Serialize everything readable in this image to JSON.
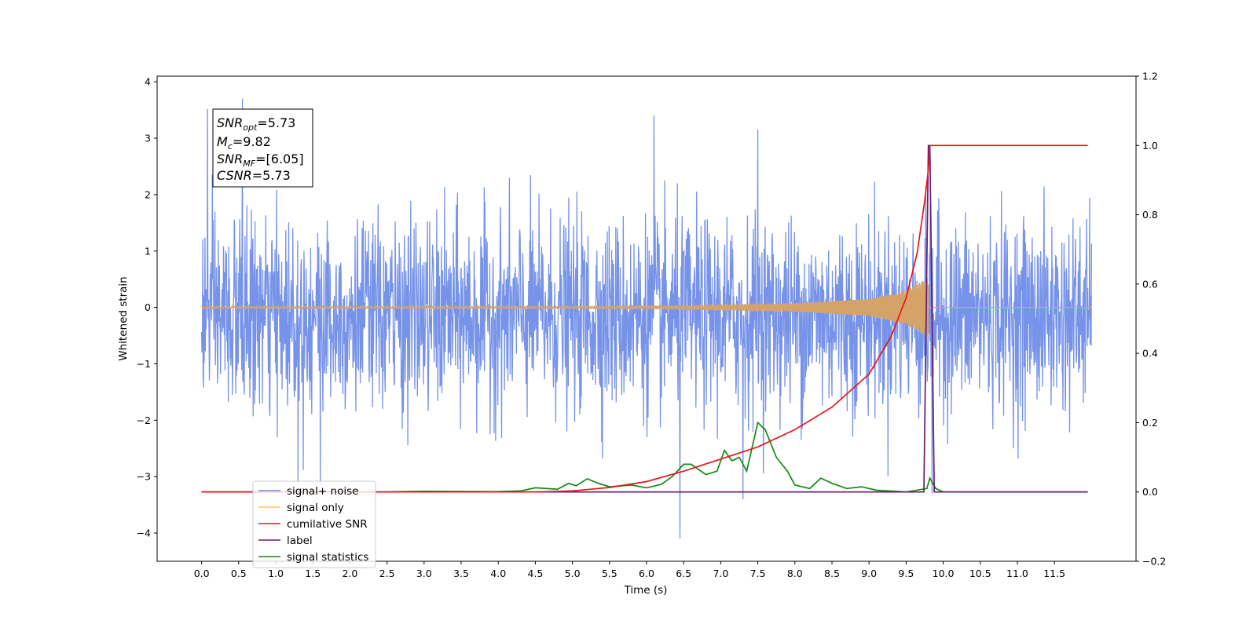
{
  "chart_data": {
    "type": "line",
    "xlabel": "Time (s)",
    "ylabel": "Whitened strain",
    "xlim": [
      -0.6,
      12.6
    ],
    "ylim_left": [
      -4.5,
      4.1
    ],
    "ylim_right": [
      -0.2,
      1.2
    ],
    "x_ticks": [
      "0.0",
      "0.5",
      "1.0",
      "1.5",
      "2.0",
      "2.5",
      "3.0",
      "3.5",
      "4.0",
      "4.5",
      "5.0",
      "5.5",
      "6.0",
      "6.5",
      "7.0",
      "7.5",
      "8.0",
      "8.5",
      "9.0",
      "9.5",
      "10.0",
      "10.5",
      "11.0",
      "11.5"
    ],
    "y_ticks_left": [
      "−4",
      "−3",
      "−2",
      "−1",
      "0",
      "1",
      "2",
      "3",
      "4"
    ],
    "y_ticks_right": [
      "−0.2",
      "0.0",
      "0.2",
      "0.4",
      "0.6",
      "0.8",
      "1.0",
      "1.2"
    ],
    "annotation": {
      "line1_label": "SNR",
      "line1_sub": "opt",
      "line1_value": "=5.73",
      "line2_label": "M",
      "line2_sub": "c",
      "line2_value": "=9.82",
      "line3_label": "SNR",
      "line3_sub": "MF",
      "line3_value": "=[6.05]",
      "line4_label": "CSNR",
      "line4_value": "=5.73"
    },
    "legend": {
      "location": "lower-left",
      "entries": [
        {
          "label": "signal+ noise",
          "color": "#6f8de8"
        },
        {
          "label": "signal only",
          "color": "#ffc266"
        },
        {
          "label": "cumilative SNR",
          "color": "#e8161b"
        },
        {
          "label": "label",
          "color": "#6a1b6e"
        },
        {
          "label": "signal statistics",
          "color": "#138a13"
        }
      ]
    },
    "series": [
      {
        "name": "signal+ noise",
        "axis": "left",
        "color": "#6f8de8",
        "t_start": 0.0,
        "t_end": 12.0,
        "samples": 2400,
        "typical_range": [
          -1.6,
          1.3
        ],
        "extremes": [
          {
            "x": 0.55,
            "y": 3.7
          },
          {
            "x": 0.08,
            "y": 3.52
          },
          {
            "x": 6.1,
            "y": 3.4
          },
          {
            "x": 7.5,
            "y": 3.15
          },
          {
            "x": 6.45,
            "y": -4.1
          },
          {
            "x": 1.3,
            "y": -3.1
          },
          {
            "x": 1.6,
            "y": -3.15
          },
          {
            "x": 9.85,
            "y": -3.3
          },
          {
            "x": 7.3,
            "y": -3.4
          }
        ]
      },
      {
        "name": "signal only",
        "axis": "left",
        "color": "#ffc266",
        "t_start": 0.0,
        "t_end": 12.0,
        "merger_time": 9.8,
        "envelope": [
          {
            "x": 0.0,
            "y": 0.02
          },
          {
            "x": 5.0,
            "y": 0.02
          },
          {
            "x": 6.5,
            "y": 0.03
          },
          {
            "x": 8.0,
            "y": 0.07
          },
          {
            "x": 9.0,
            "y": 0.15
          },
          {
            "x": 9.5,
            "y": 0.3
          },
          {
            "x": 9.8,
            "y": 0.55
          },
          {
            "x": 9.82,
            "y": 0.0
          },
          {
            "x": 12.0,
            "y": 0.0
          }
        ]
      },
      {
        "name": "cumilative SNR",
        "axis": "right",
        "color": "#e8161b",
        "points": [
          {
            "x": 0.0,
            "y": 0.0
          },
          {
            "x": 4.5,
            "y": 0.0
          },
          {
            "x": 5.0,
            "y": 0.003
          },
          {
            "x": 5.5,
            "y": 0.013
          },
          {
            "x": 6.0,
            "y": 0.03
          },
          {
            "x": 6.5,
            "y": 0.06
          },
          {
            "x": 7.0,
            "y": 0.095
          },
          {
            "x": 7.5,
            "y": 0.13
          },
          {
            "x": 8.0,
            "y": 0.18
          },
          {
            "x": 8.5,
            "y": 0.245
          },
          {
            "x": 9.0,
            "y": 0.34
          },
          {
            "x": 9.3,
            "y": 0.45
          },
          {
            "x": 9.5,
            "y": 0.56
          },
          {
            "x": 9.65,
            "y": 0.69
          },
          {
            "x": 9.75,
            "y": 0.84
          },
          {
            "x": 9.8,
            "y": 0.93
          },
          {
            "x": 9.82,
            "y": 1.0
          },
          {
            "x": 11.95,
            "y": 1.0
          }
        ]
      },
      {
        "name": "label",
        "axis": "right",
        "color": "#6a1b6e",
        "points": [
          {
            "x": 0.0,
            "y": 0.0
          },
          {
            "x": 9.74,
            "y": 0.0
          },
          {
            "x": 9.8,
            "y": 1.0
          },
          {
            "x": 9.82,
            "y": 1.0
          },
          {
            "x": 9.88,
            "y": 0.0
          },
          {
            "x": 11.95,
            "y": 0.0
          }
        ]
      },
      {
        "name": "signal statistics",
        "axis": "right",
        "color": "#138a13",
        "points": [
          {
            "x": 0.0,
            "y": 0.0
          },
          {
            "x": 2.5,
            "y": 0.0
          },
          {
            "x": 3.0,
            "y": 0.002
          },
          {
            "x": 4.0,
            "y": 0.001
          },
          {
            "x": 4.3,
            "y": 0.003
          },
          {
            "x": 4.5,
            "y": 0.012
          },
          {
            "x": 4.8,
            "y": 0.008
          },
          {
            "x": 4.95,
            "y": 0.025
          },
          {
            "x": 5.05,
            "y": 0.018
          },
          {
            "x": 5.2,
            "y": 0.038
          },
          {
            "x": 5.35,
            "y": 0.025
          },
          {
            "x": 5.5,
            "y": 0.015
          },
          {
            "x": 5.8,
            "y": 0.02
          },
          {
            "x": 6.0,
            "y": 0.012
          },
          {
            "x": 6.2,
            "y": 0.022
          },
          {
            "x": 6.35,
            "y": 0.045
          },
          {
            "x": 6.5,
            "y": 0.08
          },
          {
            "x": 6.6,
            "y": 0.08
          },
          {
            "x": 6.8,
            "y": 0.05
          },
          {
            "x": 6.95,
            "y": 0.06
          },
          {
            "x": 7.05,
            "y": 0.12
          },
          {
            "x": 7.15,
            "y": 0.09
          },
          {
            "x": 7.25,
            "y": 0.1
          },
          {
            "x": 7.35,
            "y": 0.06
          },
          {
            "x": 7.5,
            "y": 0.2
          },
          {
            "x": 7.6,
            "y": 0.18
          },
          {
            "x": 7.75,
            "y": 0.1
          },
          {
            "x": 7.9,
            "y": 0.06
          },
          {
            "x": 8.0,
            "y": 0.02
          },
          {
            "x": 8.2,
            "y": 0.01
          },
          {
            "x": 8.35,
            "y": 0.04
          },
          {
            "x": 8.5,
            "y": 0.025
          },
          {
            "x": 8.7,
            "y": 0.01
          },
          {
            "x": 8.9,
            "y": 0.015
          },
          {
            "x": 9.1,
            "y": 0.005
          },
          {
            "x": 9.5,
            "y": 0.0
          },
          {
            "x": 9.78,
            "y": 0.01
          },
          {
            "x": 9.82,
            "y": 0.04
          },
          {
            "x": 9.9,
            "y": 0.01
          },
          {
            "x": 10.0,
            "y": 0.0
          },
          {
            "x": 11.95,
            "y": 0.0
          }
        ]
      }
    ]
  }
}
